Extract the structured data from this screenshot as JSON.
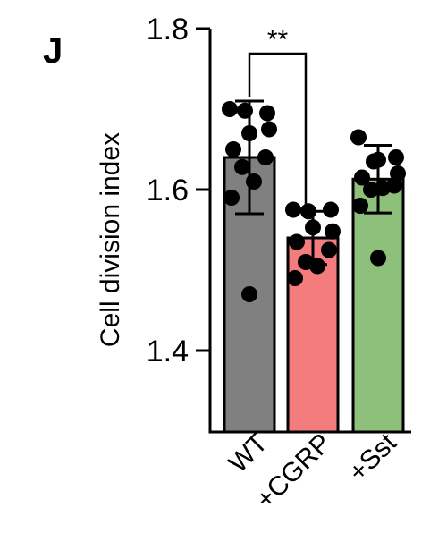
{
  "panel_letter": "J",
  "chart_data": {
    "type": "bar",
    "title": "",
    "xlabel": "",
    "ylabel": "Cell division index",
    "ylim": [
      1.3,
      1.8
    ],
    "yticks": [
      1.4,
      1.6,
      1.8
    ],
    "yticklabels": [
      "1.4",
      "1.6",
      "1.8"
    ],
    "categories": [
      "WT",
      "+CGRP",
      "+Sst"
    ],
    "values": [
      1.64,
      1.54,
      1.613
    ],
    "errors": [
      0.07,
      0.033,
      0.042
    ],
    "colors": [
      "#808080",
      "#f47c7c",
      "#8dc07a"
    ],
    "points": [
      [
        1.7,
        1.695,
        1.698,
        1.67,
        1.675,
        1.65,
        1.64,
        1.628,
        1.61,
        1.59,
        1.47
      ],
      [
        1.575,
        1.575,
        1.573,
        1.553,
        1.548,
        1.535,
        1.525,
        1.51,
        1.505,
        1.49
      ],
      [
        1.665,
        1.64,
        1.635,
        1.637,
        1.62,
        1.615,
        1.605,
        1.6,
        1.602,
        1.58,
        1.515
      ]
    ],
    "significance": [
      {
        "from": 0,
        "to": 1,
        "label": "**",
        "y": 1.76
      }
    ],
    "grid": false,
    "legend": "none"
  }
}
